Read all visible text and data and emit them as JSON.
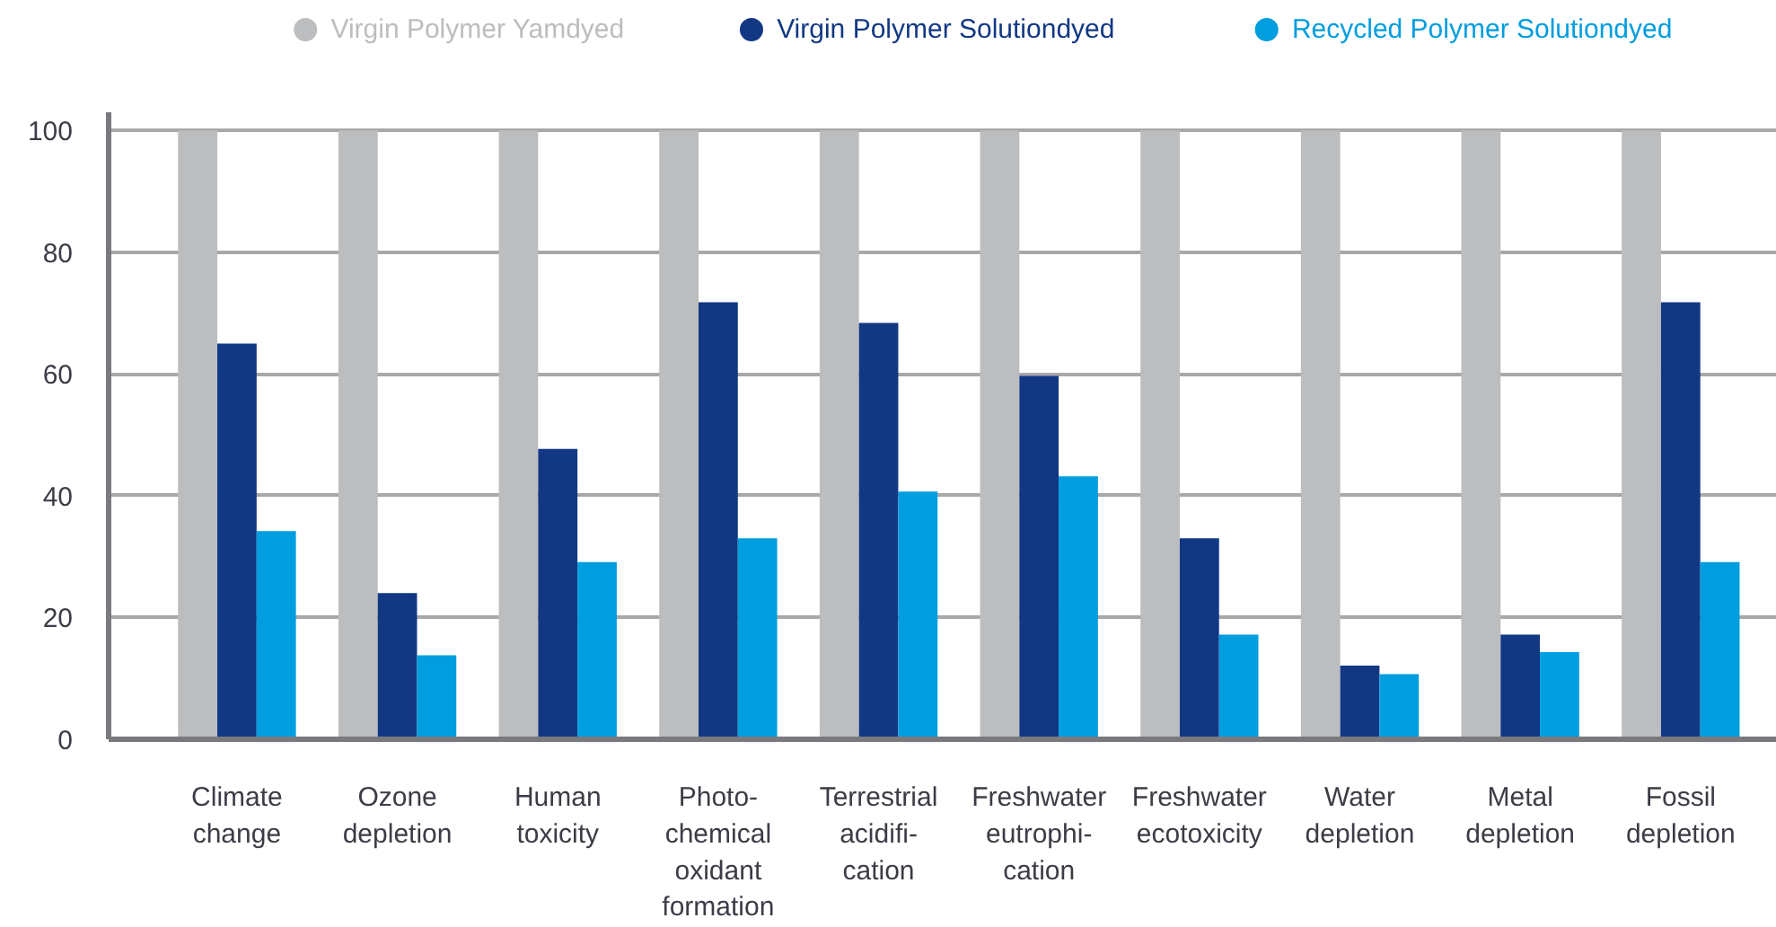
{
  "chart_data": {
    "type": "bar",
    "categories": [
      "Climate\nchange",
      "Ozone\ndepletion",
      "Human\ntoxicity",
      "Photo-\nchemical\noxidant\nformation",
      "Terrestrial\nacidifi-\ncation",
      "Freshwater\neutrophi-\ncation",
      "Freshwater\necotoxicity",
      "Water\ndepletion",
      "Metal\ndepletion",
      "Fossil\ndepletion"
    ],
    "series": [
      {
        "name": "Virgin Polymer Yamdyed",
        "color": "#bcbdbf",
        "values": [
          100,
          100,
          100,
          100,
          100,
          100,
          100,
          100,
          100,
          100
        ]
      },
      {
        "name": "Virgin Polymer Solutiondyed",
        "color": "#123884",
        "values": [
          65,
          24,
          47.7,
          71.8,
          68.4,
          59.7,
          33,
          12.1,
          17.2,
          71.8
        ]
      },
      {
        "name": "Recycled Polymer Solutiondyed",
        "color": "#009ddf",
        "values": [
          34.2,
          13.8,
          29.1,
          33,
          40.7,
          43.2,
          17.2,
          10.7,
          14.3,
          29.1
        ]
      }
    ],
    "ylim": [
      0,
      103
    ],
    "yticks": [
      0,
      20,
      40,
      60,
      80,
      100
    ],
    "grid": "y",
    "legend": "top"
  }
}
